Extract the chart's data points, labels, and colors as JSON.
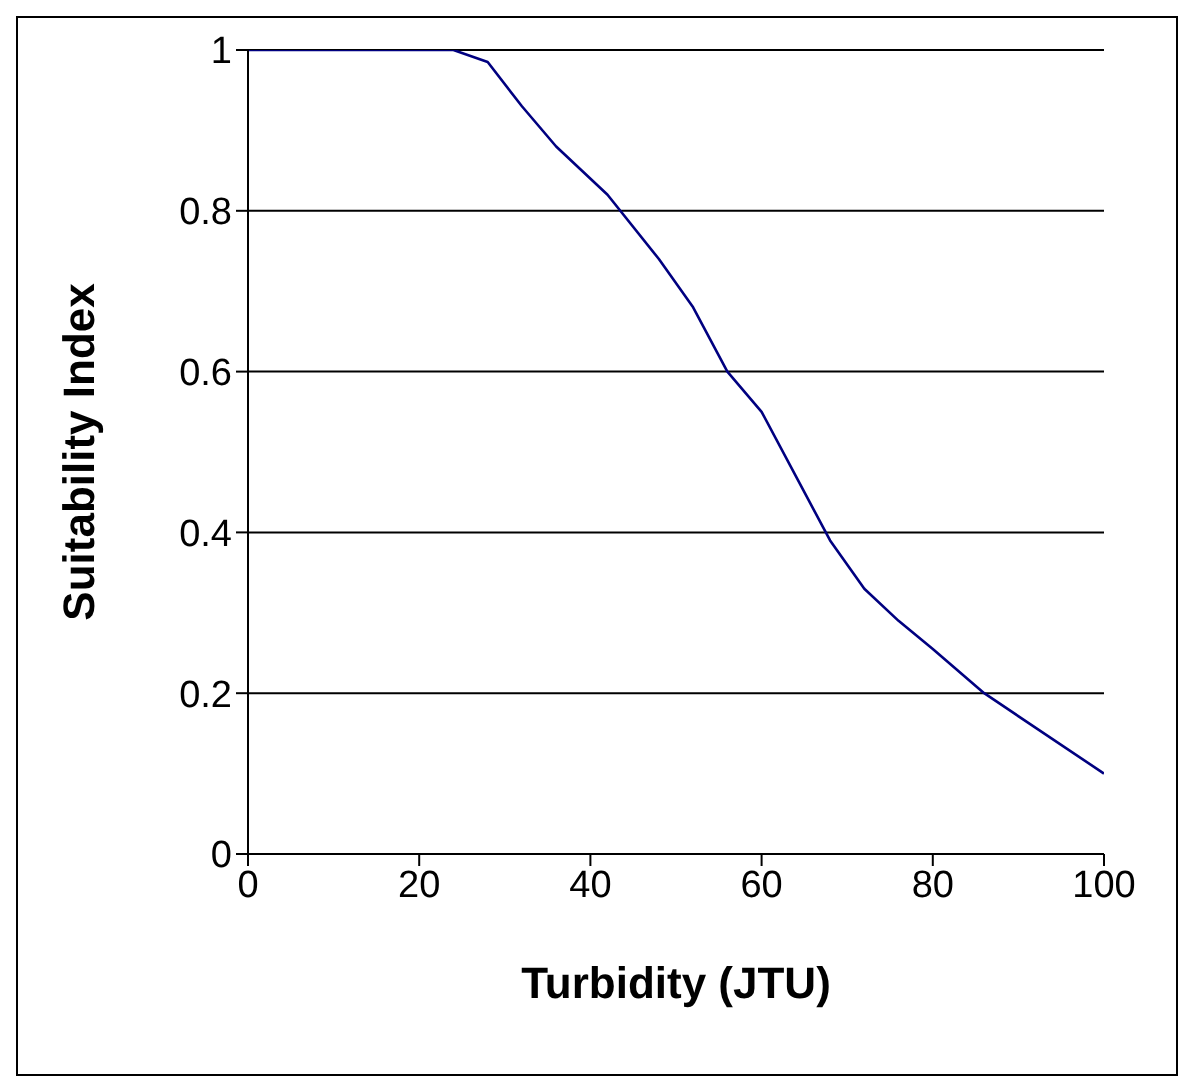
{
  "chart_data": {
    "type": "line",
    "xlabel": "Turbidity (JTU)",
    "ylabel": "Suitability Index",
    "x": [
      0,
      24,
      28,
      32,
      36,
      42,
      48,
      52,
      56,
      60,
      64,
      68,
      72,
      76,
      80,
      86,
      100
    ],
    "series": [
      {
        "color": "#000080",
        "values": [
          1,
          1,
          0.985,
          0.93,
          0.88,
          0.82,
          0.74,
          0.68,
          0.6,
          0.55,
          0.47,
          0.39,
          0.33,
          0.29,
          0.255,
          0.2,
          0.1
        ]
      }
    ],
    "xlim": [
      0,
      100
    ],
    "xticks": [
      0,
      20,
      40,
      60,
      80,
      100
    ],
    "ylim": [
      0,
      1
    ],
    "yticks": [
      0,
      0.2,
      0.4,
      0.6,
      0.8,
      1
    ],
    "grid": "y",
    "legend": false,
    "marker": "none",
    "line_style": "solid"
  }
}
